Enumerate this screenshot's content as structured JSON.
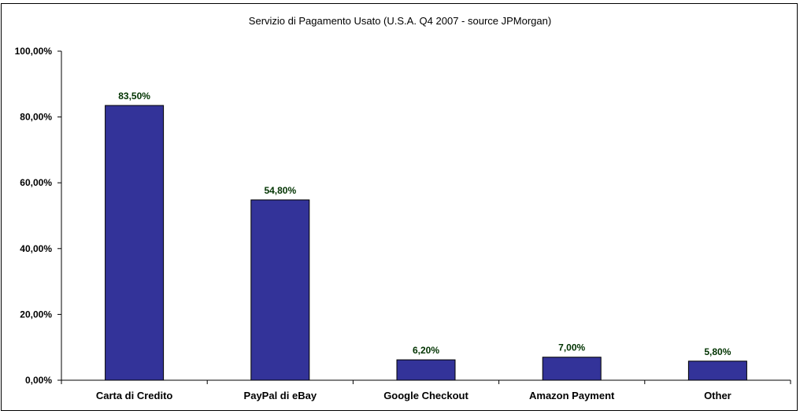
{
  "chart_data": {
    "type": "bar",
    "title": "Servizio di Pagamento Usato (U.S.A. Q4 2007 - source JPMorgan)",
    "xlabel": "",
    "ylabel": "",
    "categories": [
      "Carta di Credito",
      "PayPal di eBay",
      "Google Checkout",
      "Amazon Payment",
      "Other"
    ],
    "values": [
      83.5,
      54.8,
      6.2,
      7.0,
      5.8
    ],
    "value_labels": [
      "83,50%",
      "54,80%",
      "6,20%",
      "7,00%",
      "5,80%"
    ],
    "ylim": [
      0,
      100
    ],
    "yticks": [
      0,
      20,
      40,
      60,
      80,
      100
    ],
    "ytick_labels": [
      "0,00%",
      "20,00%",
      "40,00%",
      "60,00%",
      "80,00%",
      "100,00%"
    ],
    "grid": false,
    "legend": "none",
    "colors": {
      "bar_fill": "#333399",
      "bar_stroke": "#000000",
      "data_label": "#003300",
      "axis": "#000000",
      "background": "#ffffff"
    }
  }
}
